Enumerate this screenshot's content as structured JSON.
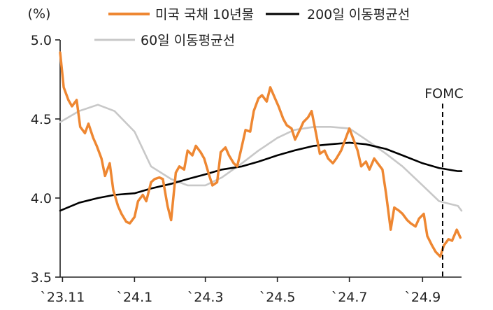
{
  "chart_data": {
    "type": "line",
    "unit_label": "(%)",
    "ylim": [
      3.5,
      5.0
    ],
    "y_ticks": [
      "5.0",
      "4.5",
      "4.0",
      "3.5"
    ],
    "y_tick_values": [
      5.0,
      4.5,
      4.0,
      3.5
    ],
    "x_ticks": [
      "`23.11",
      "`24.1",
      "`24.3",
      "`24.5",
      "`24.7",
      "`24.9"
    ],
    "x_tick_dates": [
      "2023-11-01",
      "2024-01-01",
      "2024-03-01",
      "2024-05-01",
      "2024-07-01",
      "2024-09-01"
    ],
    "x_range": [
      "2023-10-30",
      "2024-10-04"
    ],
    "annotation": {
      "label": "FOMC",
      "date": "2024-09-18"
    },
    "colors": {
      "us10y": "#EE8732",
      "ma200": "#000000",
      "ma60": "#C8C8C8",
      "axis": "#222222"
    },
    "series": [
      {
        "key": "us10y",
        "name": "미국 국채 10년물",
        "points": [
          [
            "2023-10-30",
            4.92
          ],
          [
            "2023-11-02",
            4.7
          ],
          [
            "2023-11-06",
            4.62
          ],
          [
            "2023-11-09",
            4.58
          ],
          [
            "2023-11-13",
            4.62
          ],
          [
            "2023-11-16",
            4.45
          ],
          [
            "2023-11-20",
            4.41
          ],
          [
            "2023-11-23",
            4.47
          ],
          [
            "2023-11-27",
            4.38
          ],
          [
            "2023-11-30",
            4.33
          ],
          [
            "2023-12-04",
            4.25
          ],
          [
            "2023-12-07",
            4.14
          ],
          [
            "2023-12-11",
            4.22
          ],
          [
            "2023-12-14",
            4.05
          ],
          [
            "2023-12-18",
            3.95
          ],
          [
            "2023-12-21",
            3.9
          ],
          [
            "2023-12-25",
            3.85
          ],
          [
            "2023-12-28",
            3.84
          ],
          [
            "2024-01-01",
            3.88
          ],
          [
            "2024-01-04",
            3.98
          ],
          [
            "2024-01-08",
            4.02
          ],
          [
            "2024-01-11",
            3.98
          ],
          [
            "2024-01-15",
            4.1
          ],
          [
            "2024-01-18",
            4.12
          ],
          [
            "2024-01-22",
            4.13
          ],
          [
            "2024-01-25",
            4.12
          ],
          [
            "2024-01-29",
            3.95
          ],
          [
            "2024-02-01",
            3.86
          ],
          [
            "2024-02-05",
            4.16
          ],
          [
            "2024-02-08",
            4.2
          ],
          [
            "2024-02-12",
            4.18
          ],
          [
            "2024-02-15",
            4.3
          ],
          [
            "2024-02-19",
            4.27
          ],
          [
            "2024-02-22",
            4.33
          ],
          [
            "2024-02-26",
            4.29
          ],
          [
            "2024-02-29",
            4.25
          ],
          [
            "2024-03-04",
            4.15
          ],
          [
            "2024-03-07",
            4.08
          ],
          [
            "2024-03-11",
            4.1
          ],
          [
            "2024-03-14",
            4.29
          ],
          [
            "2024-03-18",
            4.32
          ],
          [
            "2024-03-21",
            4.27
          ],
          [
            "2024-03-25",
            4.22
          ],
          [
            "2024-03-28",
            4.2
          ],
          [
            "2024-04-01",
            4.33
          ],
          [
            "2024-04-04",
            4.43
          ],
          [
            "2024-04-08",
            4.42
          ],
          [
            "2024-04-11",
            4.55
          ],
          [
            "2024-04-15",
            4.63
          ],
          [
            "2024-04-18",
            4.65
          ],
          [
            "2024-04-22",
            4.61
          ],
          [
            "2024-04-25",
            4.7
          ],
          [
            "2024-04-29",
            4.63
          ],
          [
            "2024-05-02",
            4.58
          ],
          [
            "2024-05-06",
            4.5
          ],
          [
            "2024-05-09",
            4.46
          ],
          [
            "2024-05-13",
            4.44
          ],
          [
            "2024-05-16",
            4.37
          ],
          [
            "2024-05-20",
            4.43
          ],
          [
            "2024-05-23",
            4.48
          ],
          [
            "2024-05-27",
            4.51
          ],
          [
            "2024-05-30",
            4.55
          ],
          [
            "2024-06-03",
            4.4
          ],
          [
            "2024-06-06",
            4.28
          ],
          [
            "2024-06-10",
            4.3
          ],
          [
            "2024-06-13",
            4.25
          ],
          [
            "2024-06-17",
            4.22
          ],
          [
            "2024-06-20",
            4.25
          ],
          [
            "2024-06-24",
            4.3
          ],
          [
            "2024-06-27",
            4.36
          ],
          [
            "2024-07-01",
            4.44
          ],
          [
            "2024-07-04",
            4.38
          ],
          [
            "2024-07-08",
            4.3
          ],
          [
            "2024-07-11",
            4.2
          ],
          [
            "2024-07-15",
            4.23
          ],
          [
            "2024-07-18",
            4.18
          ],
          [
            "2024-07-22",
            4.25
          ],
          [
            "2024-07-25",
            4.22
          ],
          [
            "2024-07-29",
            4.18
          ],
          [
            "2024-08-01",
            4.03
          ],
          [
            "2024-08-05",
            3.8
          ],
          [
            "2024-08-08",
            3.94
          ],
          [
            "2024-08-12",
            3.92
          ],
          [
            "2024-08-15",
            3.9
          ],
          [
            "2024-08-19",
            3.86
          ],
          [
            "2024-08-22",
            3.84
          ],
          [
            "2024-08-26",
            3.82
          ],
          [
            "2024-08-29",
            3.87
          ],
          [
            "2024-09-02",
            3.9
          ],
          [
            "2024-09-05",
            3.76
          ],
          [
            "2024-09-09",
            3.7
          ],
          [
            "2024-09-12",
            3.66
          ],
          [
            "2024-09-16",
            3.63
          ],
          [
            "2024-09-19",
            3.7
          ],
          [
            "2024-09-23",
            3.74
          ],
          [
            "2024-09-26",
            3.73
          ],
          [
            "2024-09-30",
            3.8
          ],
          [
            "2024-10-03",
            3.75
          ]
        ]
      },
      {
        "key": "ma200",
        "name": "200일 이동평균선",
        "points": [
          [
            "2023-10-30",
            3.92
          ],
          [
            "2023-11-15",
            3.97
          ],
          [
            "2023-12-01",
            4.0
          ],
          [
            "2023-12-15",
            4.02
          ],
          [
            "2024-01-01",
            4.03
          ],
          [
            "2024-01-15",
            4.06
          ],
          [
            "2024-02-01",
            4.09
          ],
          [
            "2024-02-15",
            4.12
          ],
          [
            "2024-03-01",
            4.15
          ],
          [
            "2024-03-15",
            4.18
          ],
          [
            "2024-04-01",
            4.2
          ],
          [
            "2024-04-15",
            4.23
          ],
          [
            "2024-05-01",
            4.27
          ],
          [
            "2024-05-15",
            4.3
          ],
          [
            "2024-06-01",
            4.33
          ],
          [
            "2024-06-15",
            4.34
          ],
          [
            "2024-07-01",
            4.35
          ],
          [
            "2024-07-15",
            4.34
          ],
          [
            "2024-08-01",
            4.31
          ],
          [
            "2024-08-15",
            4.27
          ],
          [
            "2024-09-01",
            4.22
          ],
          [
            "2024-09-15",
            4.19
          ],
          [
            "2024-10-01",
            4.17
          ],
          [
            "2024-10-04",
            4.17
          ]
        ]
      },
      {
        "key": "ma60",
        "name": "60일 이동평균선",
        "points": [
          [
            "2023-10-30",
            4.48
          ],
          [
            "2023-11-15",
            4.55
          ],
          [
            "2023-12-01",
            4.59
          ],
          [
            "2023-12-15",
            4.55
          ],
          [
            "2024-01-01",
            4.42
          ],
          [
            "2024-01-15",
            4.2
          ],
          [
            "2024-02-01",
            4.12
          ],
          [
            "2024-02-15",
            4.08
          ],
          [
            "2024-03-01",
            4.08
          ],
          [
            "2024-03-15",
            4.13
          ],
          [
            "2024-04-01",
            4.22
          ],
          [
            "2024-04-15",
            4.3
          ],
          [
            "2024-05-01",
            4.38
          ],
          [
            "2024-05-15",
            4.43
          ],
          [
            "2024-06-01",
            4.45
          ],
          [
            "2024-06-15",
            4.45
          ],
          [
            "2024-07-01",
            4.44
          ],
          [
            "2024-07-15",
            4.37
          ],
          [
            "2024-08-01",
            4.28
          ],
          [
            "2024-08-15",
            4.2
          ],
          [
            "2024-09-01",
            4.08
          ],
          [
            "2024-09-15",
            3.98
          ],
          [
            "2024-10-01",
            3.95
          ],
          [
            "2024-10-04",
            3.92
          ]
        ]
      }
    ],
    "legend": [
      {
        "label": "미국 국채 10년물",
        "series": "us10y"
      },
      {
        "label": "200일 이동평균선",
        "series": "ma200"
      },
      {
        "label": "60일 이동평균선",
        "series": "ma60"
      }
    ]
  }
}
